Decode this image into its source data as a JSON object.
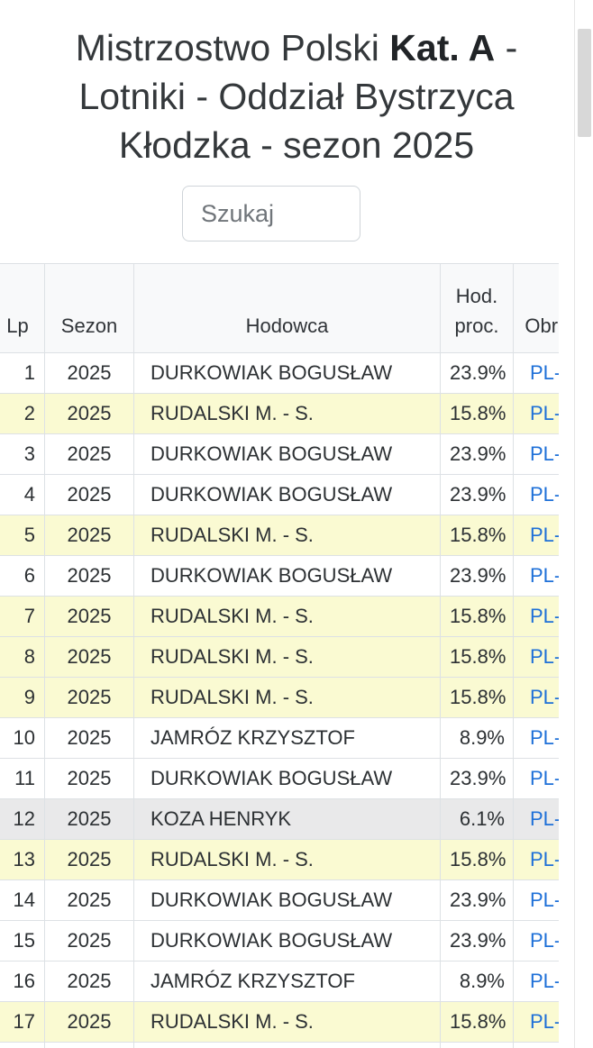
{
  "title": {
    "part1": "Mistrzostwo Polski ",
    "part2": "Kat. A",
    "part3": " - Lotniki - Oddział Bystrzyca Kłodzka - sezon 2025"
  },
  "search": {
    "placeholder": "Szukaj"
  },
  "table": {
    "columns": [
      "Lp",
      "Sezon",
      "Hodowca",
      "Hod. proc.",
      "Obrączka"
    ],
    "rows": [
      {
        "lp": "1",
        "sezon": "2025",
        "hodowca": "DURKOWIAK BOGUSŁAW",
        "proc": "23.9%",
        "ring": "PL-",
        "highlight": ""
      },
      {
        "lp": "2",
        "sezon": "2025",
        "hodowca": "RUDALSKI M. - S.",
        "proc": "15.8%",
        "ring": "PL-",
        "highlight": "yellow"
      },
      {
        "lp": "3",
        "sezon": "2025",
        "hodowca": "DURKOWIAK BOGUSŁAW",
        "proc": "23.9%",
        "ring": "PL-",
        "highlight": ""
      },
      {
        "lp": "4",
        "sezon": "2025",
        "hodowca": "DURKOWIAK BOGUSŁAW",
        "proc": "23.9%",
        "ring": "PL-",
        "highlight": ""
      },
      {
        "lp": "5",
        "sezon": "2025",
        "hodowca": "RUDALSKI M. - S.",
        "proc": "15.8%",
        "ring": "PL-",
        "highlight": "yellow"
      },
      {
        "lp": "6",
        "sezon": "2025",
        "hodowca": "DURKOWIAK BOGUSŁAW",
        "proc": "23.9%",
        "ring": "PL-",
        "highlight": ""
      },
      {
        "lp": "7",
        "sezon": "2025",
        "hodowca": "RUDALSKI M. - S.",
        "proc": "15.8%",
        "ring": "PL-",
        "highlight": "yellow"
      },
      {
        "lp": "8",
        "sezon": "2025",
        "hodowca": "RUDALSKI M. - S.",
        "proc": "15.8%",
        "ring": "PL-",
        "highlight": "yellow"
      },
      {
        "lp": "9",
        "sezon": "2025",
        "hodowca": "RUDALSKI M. - S.",
        "proc": "15.8%",
        "ring": "PL-",
        "highlight": "yellow"
      },
      {
        "lp": "10",
        "sezon": "2025",
        "hodowca": "JAMRÓZ KRZYSZTOF",
        "proc": "8.9%",
        "ring": "PL-",
        "highlight": ""
      },
      {
        "lp": "11",
        "sezon": "2025",
        "hodowca": "DURKOWIAK BOGUSŁAW",
        "proc": "23.9%",
        "ring": "PL-",
        "highlight": ""
      },
      {
        "lp": "12",
        "sezon": "2025",
        "hodowca": "KOZA HENRYK",
        "proc": "6.1%",
        "ring": "PL-",
        "highlight": "gray"
      },
      {
        "lp": "13",
        "sezon": "2025",
        "hodowca": "RUDALSKI M. - S.",
        "proc": "15.8%",
        "ring": "PL-",
        "highlight": "yellow"
      },
      {
        "lp": "14",
        "sezon": "2025",
        "hodowca": "DURKOWIAK BOGUSŁAW",
        "proc": "23.9%",
        "ring": "PL-",
        "highlight": ""
      },
      {
        "lp": "15",
        "sezon": "2025",
        "hodowca": "DURKOWIAK BOGUSŁAW",
        "proc": "23.9%",
        "ring": "PL-",
        "highlight": ""
      },
      {
        "lp": "16",
        "sezon": "2025",
        "hodowca": "JAMRÓZ KRZYSZTOF",
        "proc": "8.9%",
        "ring": "PL-",
        "highlight": ""
      },
      {
        "lp": "17",
        "sezon": "2025",
        "hodowca": "RUDALSKI M. - S.",
        "proc": "15.8%",
        "ring": "PL-",
        "highlight": "yellow"
      }
    ]
  },
  "colors": {
    "accent": "#1e70d8",
    "row_highlight": "#fafad2",
    "row_selected": "#e9e9ea",
    "header_bg": "#f8f9fa",
    "border_color": "#dde1e5",
    "title_color": "#34383b",
    "title_bold_color": "#212427"
  }
}
